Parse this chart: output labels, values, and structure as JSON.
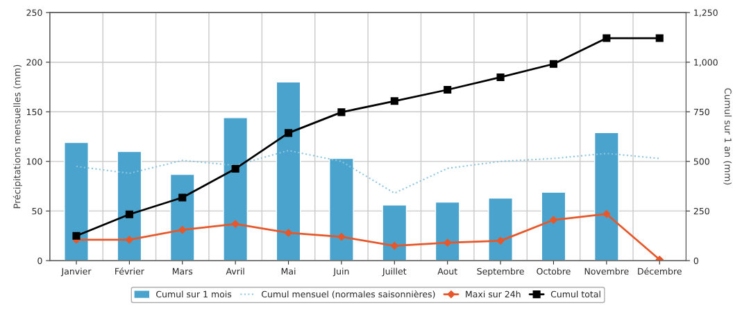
{
  "chart_data": {
    "type": "bar",
    "ylabel": "Précipitations mensuelles (mm)",
    "y2label": "Cumul sur 1 an (mm)",
    "categories": [
      "Janvier",
      "Février",
      "Mars",
      "Avril",
      "Mai",
      "Juin",
      "Juillet",
      "Aout",
      "Septembre",
      "Octobre",
      "Novembre",
      "Décembre"
    ],
    "series": [
      {
        "name": "Cumul sur 1 mois",
        "color": "#4aa3cc",
        "values": [
          119,
          110,
          87,
          144,
          180,
          103,
          56,
          59,
          63,
          69,
          129,
          null
        ]
      },
      {
        "name": "Cumul mensuel (normales saisonnières)",
        "type": "line",
        "color": "#8cc6de",
        "line_style": "dotted",
        "marker": "none",
        "values": [
          95,
          88,
          101,
          96,
          111,
          100,
          68,
          93,
          100,
          103,
          108,
          103
        ]
      },
      {
        "name": "Maxi sur 24h",
        "type": "line",
        "color": "#e8572a",
        "line_style": "solid",
        "marker": "diamond",
        "values": [
          21,
          21,
          31,
          37,
          28,
          24,
          15,
          18,
          20,
          41,
          47,
          1
        ]
      },
      {
        "name": "Cumul total",
        "type": "line",
        "axis": "y2",
        "color": "#000000",
        "line_style": "solid",
        "marker": "square",
        "values": [
          125,
          233,
          318,
          463,
          643,
          748,
          804,
          861,
          924,
          991,
          1121,
          1121
        ]
      }
    ],
    "ylim": [
      0,
      250
    ],
    "yticks": [
      0,
      50,
      100,
      150,
      200,
      250
    ],
    "y2lim": [
      0,
      1250
    ],
    "y2ticks": [
      0,
      250,
      500,
      750,
      {
        "value": 1000,
        "label": "1,000"
      },
      {
        "value": 1250,
        "label": "1,250"
      }
    ],
    "grid": true,
    "legend": "bottom"
  }
}
